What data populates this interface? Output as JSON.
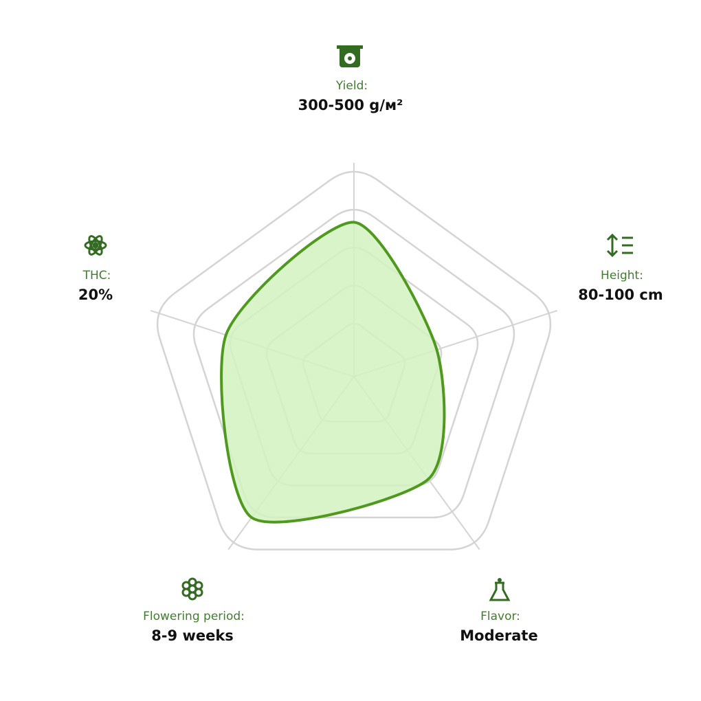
{
  "chart_data": {
    "type": "radar",
    "categories": [
      "Yield:",
      "Height:",
      "Flavor:",
      "Flowering period:",
      "THC:"
    ],
    "descriptions": [
      "300-500 g/м²",
      "80-100 cm",
      "Moderate",
      "8-9 weeks",
      "20%"
    ],
    "values": [
      3.5,
      1.8,
      2.8,
      4.0,
      3.0
    ],
    "ylim": [
      -0.4,
      5
    ],
    "yticks": [
      1,
      2,
      3,
      4,
      5
    ],
    "color": "#4f9a1e",
    "fill": "#d3f2bf",
    "grid": true
  }
}
